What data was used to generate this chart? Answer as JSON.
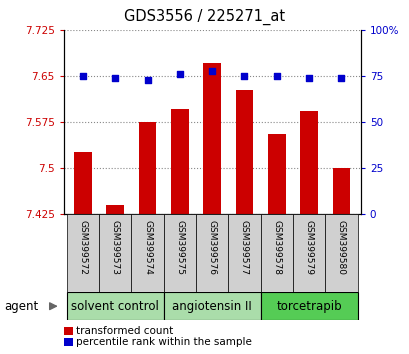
{
  "title": "GDS3556 / 225271_at",
  "samples": [
    "GSM399572",
    "GSM399573",
    "GSM399574",
    "GSM399575",
    "GSM399576",
    "GSM399577",
    "GSM399578",
    "GSM399579",
    "GSM399580"
  ],
  "red_values": [
    7.527,
    7.44,
    7.575,
    7.597,
    7.672,
    7.628,
    7.555,
    7.593,
    7.5
  ],
  "blue_values": [
    75,
    74,
    73,
    76,
    78,
    75,
    75,
    74,
    74
  ],
  "ylim_left": [
    7.425,
    7.725
  ],
  "ylim_right": [
    0,
    100
  ],
  "yticks_left": [
    7.425,
    7.5,
    7.575,
    7.65,
    7.725
  ],
  "yticks_right": [
    0,
    25,
    50,
    75,
    100
  ],
  "ytick_labels_left": [
    "7.425",
    "7.5",
    "7.575",
    "7.65",
    "7.725"
  ],
  "ytick_labels_right": [
    "0",
    "25",
    "50",
    "75",
    "100%"
  ],
  "groups": [
    {
      "label": "solvent control",
      "start": 0,
      "end": 3
    },
    {
      "label": "angiotensin II",
      "start": 3,
      "end": 6
    },
    {
      "label": "torcetrapib",
      "start": 6,
      "end": 9
    }
  ],
  "group_colors": [
    "#AADDAA",
    "#AADDAA",
    "#55CC55"
  ],
  "agent_label": "agent",
  "red_color": "#CC0000",
  "blue_color": "#0000CC",
  "bar_width": 0.55,
  "bg_color": "#FFFFFF",
  "legend_red": "transformed count",
  "legend_blue": "percentile rank within the sample",
  "title_fontsize": 10.5,
  "tick_fontsize": 7.5,
  "group_label_fontsize": 8.5,
  "sample_fontsize": 6.5
}
